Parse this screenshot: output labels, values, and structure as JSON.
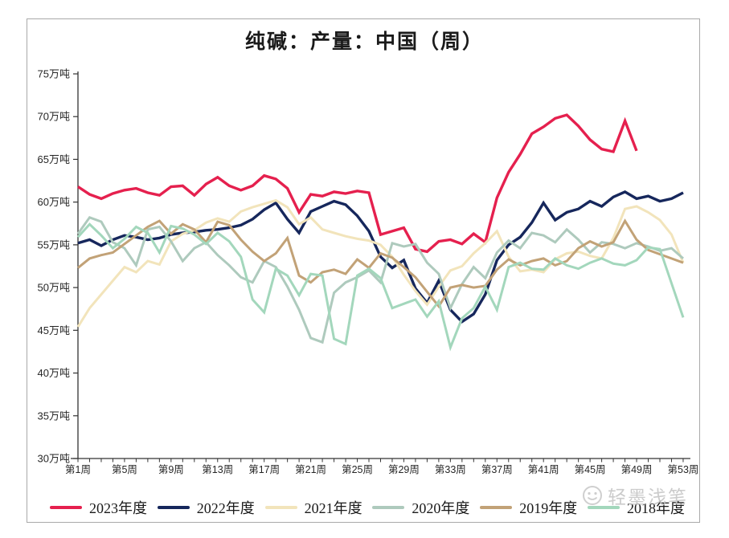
{
  "page": {
    "background": "#ffffff",
    "card_border_color": "#a9a9a9"
  },
  "watermark": {
    "text": "轻墨浅笔",
    "color": "#c3c3c3",
    "icon": "smiley-face-icon"
  },
  "chart_data": {
    "type": "line",
    "title": "纯碱：产量：中国（周）",
    "xlabel": "",
    "ylabel": "",
    "unit": "万吨",
    "ylim": [
      30,
      75
    ],
    "y_tick_step": 5,
    "y_tick_labels": [
      "30万吨",
      "35万吨",
      "40万吨",
      "45万吨",
      "50万吨",
      "55万吨",
      "60万吨",
      "65万吨",
      "70万吨",
      "75万吨"
    ],
    "x_weeks": 53,
    "x_tick_labels": [
      "第1周",
      "第5周",
      "第9周",
      "第13周",
      "第17周",
      "第21周",
      "第25周",
      "第29周",
      "第33周",
      "第37周",
      "第41周",
      "第45周",
      "第49周",
      "第53周"
    ],
    "x_tick_label_weeks": [
      1,
      5,
      9,
      13,
      17,
      21,
      25,
      29,
      33,
      37,
      41,
      45,
      49,
      53
    ],
    "grid": false,
    "legend_position": "bottom",
    "axis_color": "#333333",
    "tick_label_color": "#262626",
    "series": [
      {
        "name": "2023年度",
        "color": "#e5204e",
        "values": [
          61.8,
          60.9,
          60.4,
          61.0,
          61.4,
          61.6,
          61.1,
          60.8,
          61.8,
          61.9,
          60.8,
          62.1,
          62.9,
          61.9,
          61.4,
          61.9,
          63.1,
          62.7,
          61.6,
          58.8,
          60.9,
          60.7,
          61.2,
          61.0,
          61.3,
          61.1,
          56.2,
          56.6,
          57.0,
          54.5,
          54.2,
          55.4,
          55.6,
          55.1,
          56.3,
          55.3,
          60.5,
          63.5,
          65.6,
          68.0,
          68.8,
          69.8,
          70.2,
          68.9,
          67.3,
          66.2,
          65.9,
          69.5,
          66.0,
          null,
          null,
          null,
          null
        ]
      },
      {
        "name": "2022年度",
        "color": "#16275c",
        "values": [
          55.2,
          55.6,
          54.9,
          55.6,
          56.1,
          55.9,
          55.6,
          55.8,
          56.2,
          56.4,
          56.5,
          56.7,
          56.8,
          57.0,
          57.3,
          58.0,
          59.1,
          59.9,
          58.0,
          56.4,
          58.9,
          59.5,
          60.1,
          59.7,
          58.4,
          56.6,
          53.6,
          52.3,
          53.2,
          49.9,
          48.2,
          50.8,
          47.4,
          46.0,
          46.9,
          49.2,
          53.2,
          55.0,
          55.9,
          57.6,
          59.9,
          57.9,
          58.8,
          59.2,
          60.1,
          59.5,
          60.6,
          61.2,
          60.4,
          60.7,
          60.1,
          60.4,
          61.1
        ]
      },
      {
        "name": "2021年度",
        "color": "#f2e4bb",
        "values": [
          45.4,
          47.6,
          49.2,
          50.8,
          52.4,
          51.8,
          53.1,
          52.7,
          55.4,
          56.3,
          56.7,
          57.6,
          58.1,
          57.7,
          58.9,
          59.4,
          59.8,
          60.2,
          59.4,
          57.4,
          58.2,
          56.8,
          56.4,
          56.0,
          55.7,
          55.5,
          55.0,
          53.6,
          51.5,
          49.6,
          48.0,
          50.1,
          52.0,
          52.5,
          54.0,
          55.2,
          56.6,
          53.6,
          51.9,
          52.1,
          51.8,
          53.3,
          54.0,
          54.2,
          53.7,
          53.4,
          55.8,
          59.2,
          59.5,
          58.8,
          57.9,
          56.2,
          52.9
        ]
      },
      {
        "name": "2020年度",
        "color": "#aecabd",
        "values": [
          56.3,
          58.2,
          57.7,
          55.3,
          54.6,
          52.6,
          56.8,
          57.1,
          55.4,
          53.1,
          54.6,
          55.3,
          53.8,
          52.6,
          51.2,
          50.6,
          53.1,
          52.4,
          50.1,
          47.4,
          44.1,
          43.6,
          49.4,
          50.6,
          51.2,
          52.0,
          50.6,
          55.2,
          54.8,
          55.1,
          52.9,
          51.6,
          47.6,
          50.4,
          52.4,
          51.1,
          54.1,
          55.5,
          54.6,
          56.4,
          56.1,
          55.3,
          56.8,
          55.6,
          54.1,
          55.3,
          55.1,
          54.6,
          55.2,
          54.8,
          54.3,
          54.6,
          53.4
        ]
      },
      {
        "name": "2019年度",
        "color": "#c2a277",
        "values": [
          52.3,
          53.4,
          53.8,
          54.1,
          55.1,
          56.1,
          57.1,
          57.8,
          56.3,
          57.4,
          56.8,
          55.3,
          57.7,
          57.3,
          55.6,
          54.2,
          53.1,
          54.0,
          55.8,
          51.4,
          50.6,
          51.8,
          52.1,
          51.6,
          53.3,
          52.3,
          54.0,
          53.5,
          52.4,
          51.2,
          49.5,
          47.8,
          50.0,
          50.3,
          50.0,
          50.2,
          52.1,
          53.3,
          52.6,
          53.1,
          53.4,
          52.6,
          53.1,
          54.6,
          55.4,
          54.8,
          55.3,
          57.8,
          55.6,
          54.4,
          53.9,
          53.4,
          52.9
        ]
      },
      {
        "name": "2018年度",
        "color": "#a3d7bc",
        "values": [
          55.9,
          57.4,
          56.1,
          54.6,
          55.7,
          57.1,
          56.4,
          54.1,
          57.2,
          56.9,
          56.2,
          55.1,
          56.4,
          55.4,
          53.6,
          48.6,
          47.1,
          52.2,
          51.4,
          49.1,
          51.6,
          51.4,
          44.0,
          43.4,
          51.4,
          52.2,
          51.1,
          47.6,
          48.1,
          48.6,
          46.6,
          48.4,
          43.0,
          46.4,
          47.6,
          50.1,
          47.4,
          52.4,
          52.9,
          52.2,
          52.1,
          53.4,
          52.6,
          52.2,
          52.9,
          53.4,
          52.8,
          52.6,
          53.2,
          54.7,
          54.5,
          50.5,
          46.5
        ]
      }
    ]
  }
}
